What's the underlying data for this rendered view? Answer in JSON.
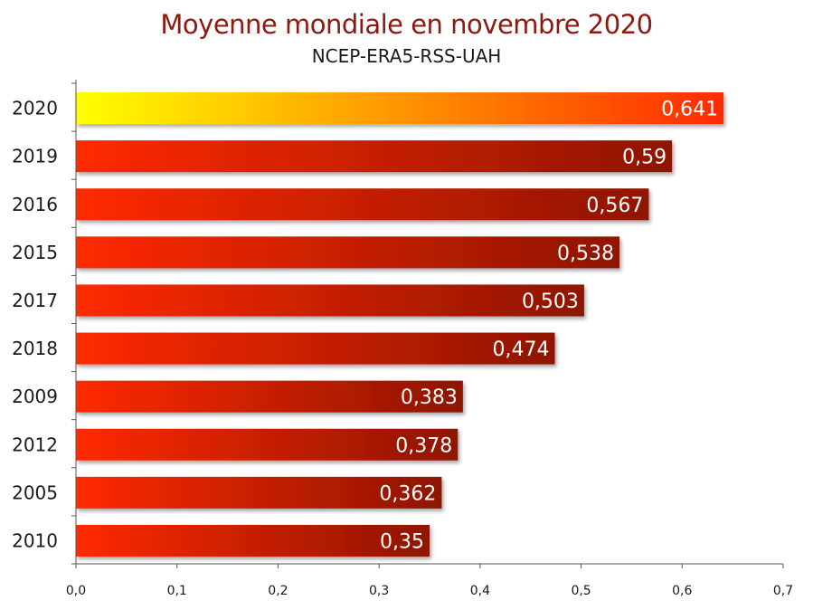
{
  "chart_data": {
    "type": "bar",
    "orientation": "horizontal",
    "title": "Moyenne mondiale en novembre 2020",
    "subtitle": "NCEP-ERA5-RSS-UAH",
    "categories": [
      "2020",
      "2019",
      "2016",
      "2015",
      "2017",
      "2018",
      "2009",
      "2012",
      "2005",
      "2010"
    ],
    "values": [
      0.641,
      0.59,
      0.567,
      0.538,
      0.503,
      0.474,
      0.383,
      0.378,
      0.362,
      0.35
    ],
    "value_labels": [
      "0,641",
      "0,59",
      "0,567",
      "0,538",
      "0,503",
      "0,474",
      "0,383",
      "0,378",
      "0,362",
      "0,35"
    ],
    "xlim": [
      0,
      0.7
    ],
    "x_ticks": [
      0,
      0.1,
      0.2,
      0.3,
      0.4,
      0.5,
      0.6,
      0.7
    ],
    "x_tick_labels": [
      "0,0",
      "0,1",
      "0,2",
      "0,3",
      "0,4",
      "0,5",
      "0,6",
      "0,7"
    ],
    "grid": false,
    "colors": {
      "highlight_start": "#ffff00",
      "highlight_end": "#ff2a00",
      "bar_start": "#ff2a00",
      "bar_end": "#8e1404",
      "title": "#8b1a10"
    }
  }
}
